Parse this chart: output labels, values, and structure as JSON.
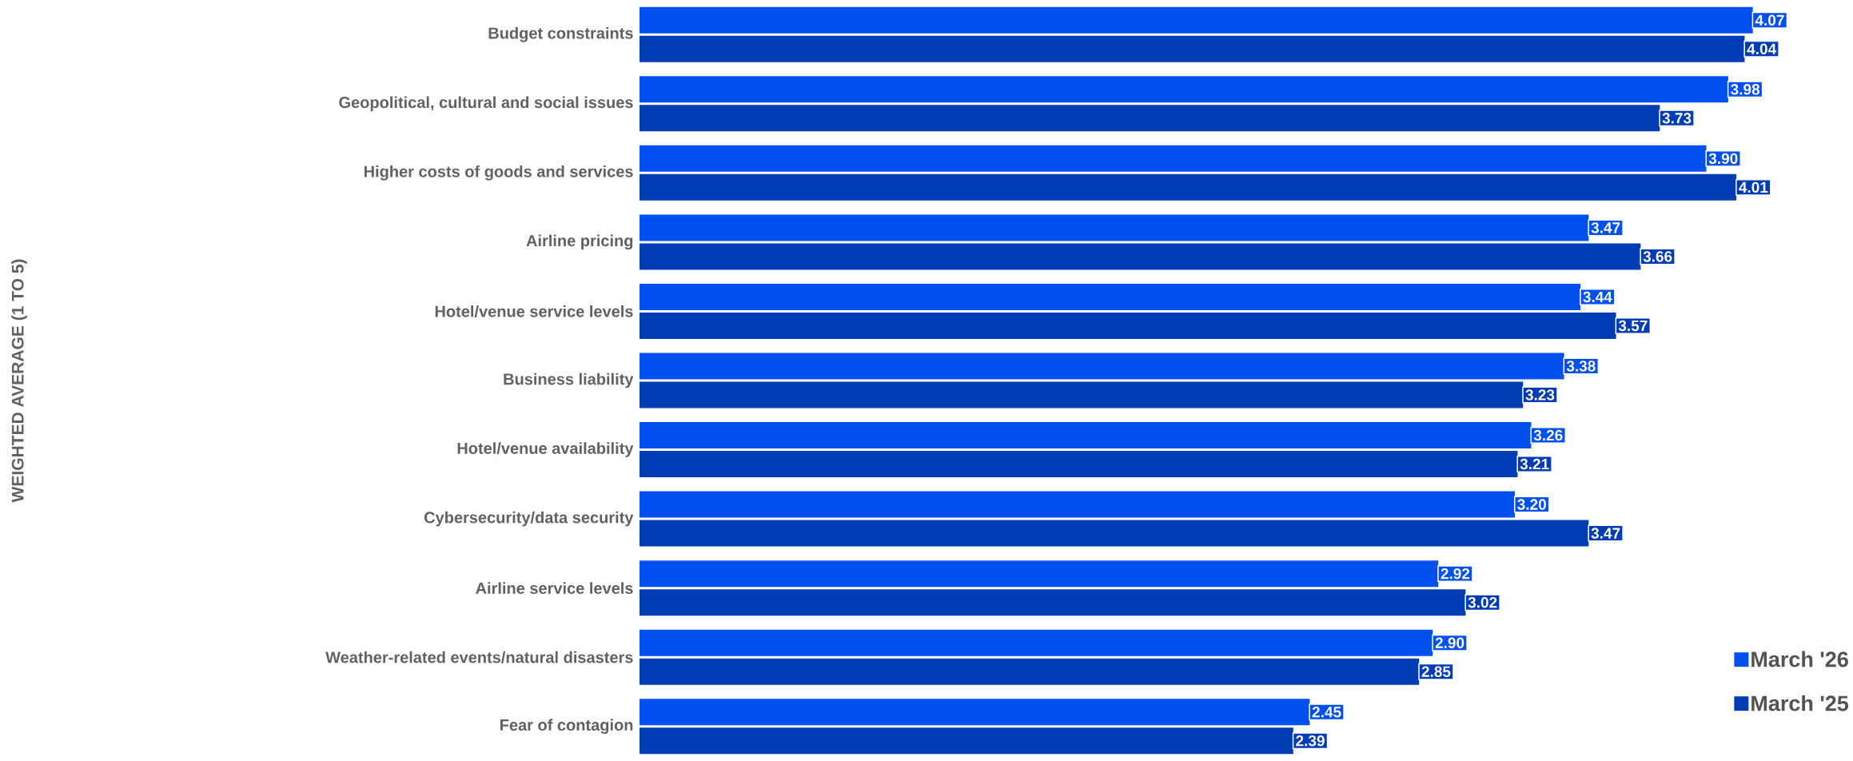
{
  "chart_data": {
    "type": "bar",
    "orientation": "horizontal",
    "annotations": [
      "WEIGHTED AVERAGE (1 TO 5)"
    ],
    "categories": [
      "Budget constraints",
      "Geopolitical, cultural and social issues",
      "Higher costs of goods and services",
      "Airline pricing",
      "Hotel/venue service levels",
      "Business liability",
      "Hotel/venue availability",
      "Cybersecurity/data security",
      "Airline service levels",
      "Weather-related events/natural disasters",
      "Fear of contagion"
    ],
    "series": [
      {
        "name": "March '26",
        "color": "#0050f0",
        "values": [
          4.07,
          3.98,
          3.9,
          3.47,
          3.44,
          3.38,
          3.26,
          3.2,
          2.92,
          2.9,
          2.45
        ],
        "value_labels": [
          "4.07",
          "3.98",
          "3.90",
          "3.47",
          "3.44",
          "3.38",
          "3.26",
          "3.20",
          "2.92",
          "2.90",
          "2.45"
        ]
      },
      {
        "name": "March '25",
        "color": "#003cb4",
        "values": [
          4.04,
          3.73,
          4.01,
          3.66,
          3.57,
          3.23,
          3.21,
          3.47,
          3.02,
          2.85,
          2.39
        ],
        "value_labels": [
          "4.04",
          "3.73",
          "4.01",
          "3.66",
          "3.57",
          "3.23",
          "3.21",
          "3.47",
          "3.02",
          "2.85",
          "2.39"
        ]
      }
    ],
    "legend": "bottom right"
  }
}
